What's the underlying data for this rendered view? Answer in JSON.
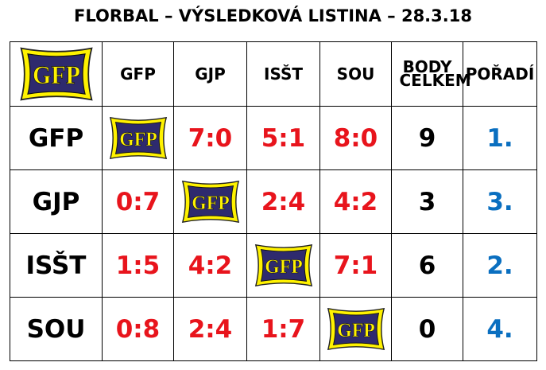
{
  "title": "FLORBAL – VÝSLEDKOVÁ LISTINA – 28.3.18",
  "logo": "GFP",
  "header": {
    "columns": [
      "GFP",
      "GJP",
      "ISŠT",
      "SOU"
    ],
    "points": "BODY CELKEM",
    "rank": "POŘADÍ"
  },
  "rows": [
    {
      "team": "GFP",
      "results": [
        null,
        "7:0",
        "5:1",
        "8:0"
      ],
      "points": 9,
      "rank": "1."
    },
    {
      "team": "GJP",
      "results": [
        "0:7",
        null,
        "2:4",
        "4:2"
      ],
      "points": 3,
      "rank": "3."
    },
    {
      "team": "ISŠT",
      "results": [
        "1:5",
        "4:2",
        null,
        "7:1"
      ],
      "points": 6,
      "rank": "2."
    },
    {
      "team": "SOU",
      "results": [
        "0:8",
        "2:4",
        "1:7",
        null
      ],
      "points": 0,
      "rank": "4."
    }
  ]
}
